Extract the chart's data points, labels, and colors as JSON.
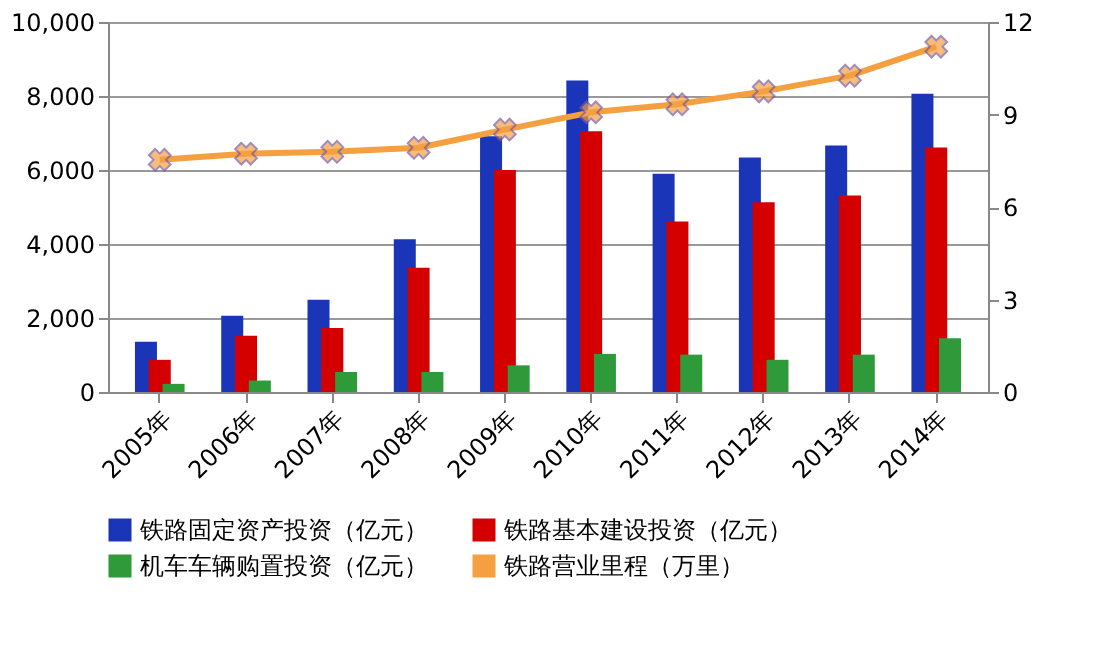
{
  "chart_data": {
    "type": "bar",
    "categories": [
      "2005年",
      "2006年",
      "2007年",
      "2008年",
      "2009年",
      "2010年",
      "2011年",
      "2012年",
      "2013年",
      "2014年"
    ],
    "series": [
      {
        "name": "铁路固定资产投资（亿元）",
        "color": "#1a35b8",
        "values": [
          1360,
          2060,
          2490,
          4130,
          6910,
          8420,
          5900,
          6340,
          6660,
          8060
        ]
      },
      {
        "name": "铁路基本建设投资（亿元）",
        "color": "#d40000",
        "values": [
          870,
          1520,
          1730,
          3360,
          6000,
          7050,
          4610,
          5130,
          5310,
          6610
        ]
      },
      {
        "name": "机车车辆购置投资（亿元）",
        "color": "#2e9a3a",
        "values": [
          220,
          310,
          540,
          540,
          720,
          1030,
          1010,
          870,
          1010,
          1450
        ]
      },
      {
        "name": "铁路营业里程（万里）",
        "color": "#f5a040",
        "type": "line",
        "axis": "y2",
        "marker": "cross",
        "values": [
          7.53,
          7.73,
          7.79,
          7.92,
          8.51,
          9.07,
          9.33,
          9.75,
          10.26,
          11.2
        ]
      }
    ],
    "ylim": [
      0,
      10000
    ],
    "yticks": [
      0,
      {
        "value": 2000,
        "label": "2,000"
      },
      {
        "value": 4000,
        "label": "4,000"
      },
      {
        "value": 6000,
        "label": "6,000"
      },
      {
        "value": 8000,
        "label": "8,000"
      },
      {
        "value": 10000,
        "label": "10,000"
      }
    ],
    "y2lim": [
      0,
      12
    ],
    "y2ticks": [
      0,
      3,
      6,
      9,
      12
    ],
    "grid": "y",
    "legend": "bottom"
  }
}
